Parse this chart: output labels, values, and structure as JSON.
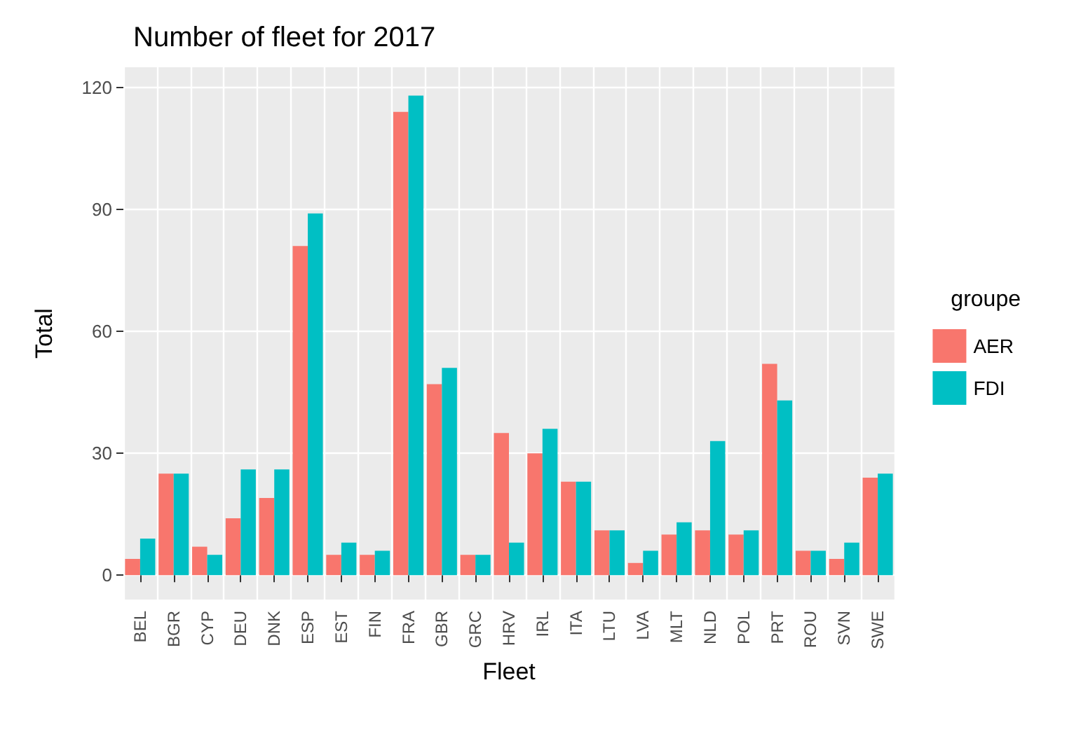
{
  "chart_data": {
    "type": "bar",
    "title": "Number of fleet for 2017",
    "xlabel": "Fleet",
    "ylabel": "Total",
    "legend_title": "groupe",
    "categories": [
      "BEL",
      "BGR",
      "CYP",
      "DEU",
      "DNK",
      "ESP",
      "EST",
      "FIN",
      "FRA",
      "GBR",
      "GRC",
      "HRV",
      "IRL",
      "ITA",
      "LTU",
      "LVA",
      "MLT",
      "NLD",
      "POL",
      "PRT",
      "ROU",
      "SVN",
      "SWE"
    ],
    "series": [
      {
        "name": "AER",
        "color": "#f8766d",
        "values": [
          4,
          25,
          7,
          14,
          19,
          81,
          5,
          5,
          114,
          47,
          5,
          35,
          30,
          23,
          11,
          3,
          10,
          11,
          10,
          52,
          6,
          4,
          24
        ]
      },
      {
        "name": "FDI",
        "color": "#00bfc4",
        "values": [
          9,
          25,
          5,
          26,
          26,
          89,
          8,
          6,
          118,
          51,
          5,
          8,
          36,
          23,
          11,
          6,
          13,
          33,
          11,
          43,
          6,
          8,
          25
        ]
      }
    ],
    "ylim": [
      -6,
      125
    ],
    "yticks": [
      0,
      30,
      60,
      90,
      120
    ],
    "grid": true,
    "legend": "right"
  }
}
